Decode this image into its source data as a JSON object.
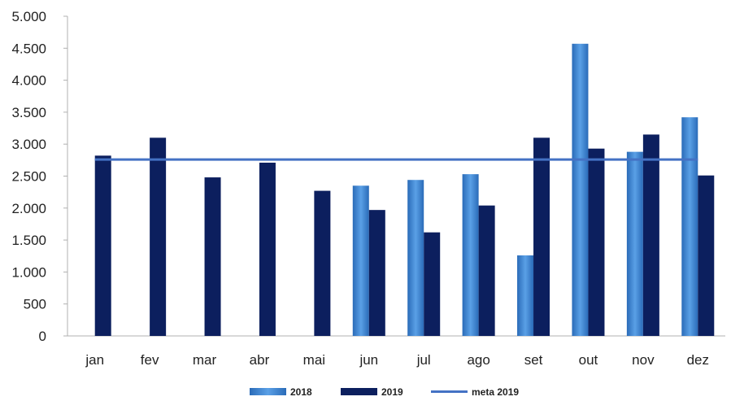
{
  "chart_data": {
    "type": "bar",
    "categories": [
      "jan",
      "fev",
      "mar",
      "abr",
      "mai",
      "jun",
      "jul",
      "ago",
      "set",
      "out",
      "nov",
      "dez"
    ],
    "series": [
      {
        "name": "2018",
        "values": [
          null,
          null,
          null,
          null,
          null,
          2350,
          2440,
          2530,
          1260,
          4570,
          2880,
          3420
        ]
      },
      {
        "name": "2019",
        "values": [
          2820,
          3100,
          2480,
          2710,
          2270,
          1970,
          1620,
          2040,
          3100,
          2930,
          3150,
          2510
        ]
      }
    ],
    "target_line": {
      "name": "meta 2019",
      "value": 2760
    },
    "ylim": [
      0,
      5000
    ],
    "yticks": [
      0,
      500,
      1000,
      1500,
      2000,
      2500,
      3000,
      3500,
      4000,
      4500,
      5000
    ],
    "ytick_labels": [
      "0",
      "500",
      "1.000",
      "1.500",
      "2.000",
      "2.500",
      "3.000",
      "3.500",
      "4.000",
      "4.500",
      "5.000"
    ],
    "legend_position": "bottom",
    "grid": false,
    "colors": {
      "s2018": "#4a90d9",
      "s2019": "#0c1f5e",
      "target": "#4472c4",
      "axis": "#b0b0b0"
    }
  },
  "legend": {
    "items": [
      {
        "label": "2018"
      },
      {
        "label": "2019"
      },
      {
        "label": "meta 2019"
      }
    ]
  }
}
